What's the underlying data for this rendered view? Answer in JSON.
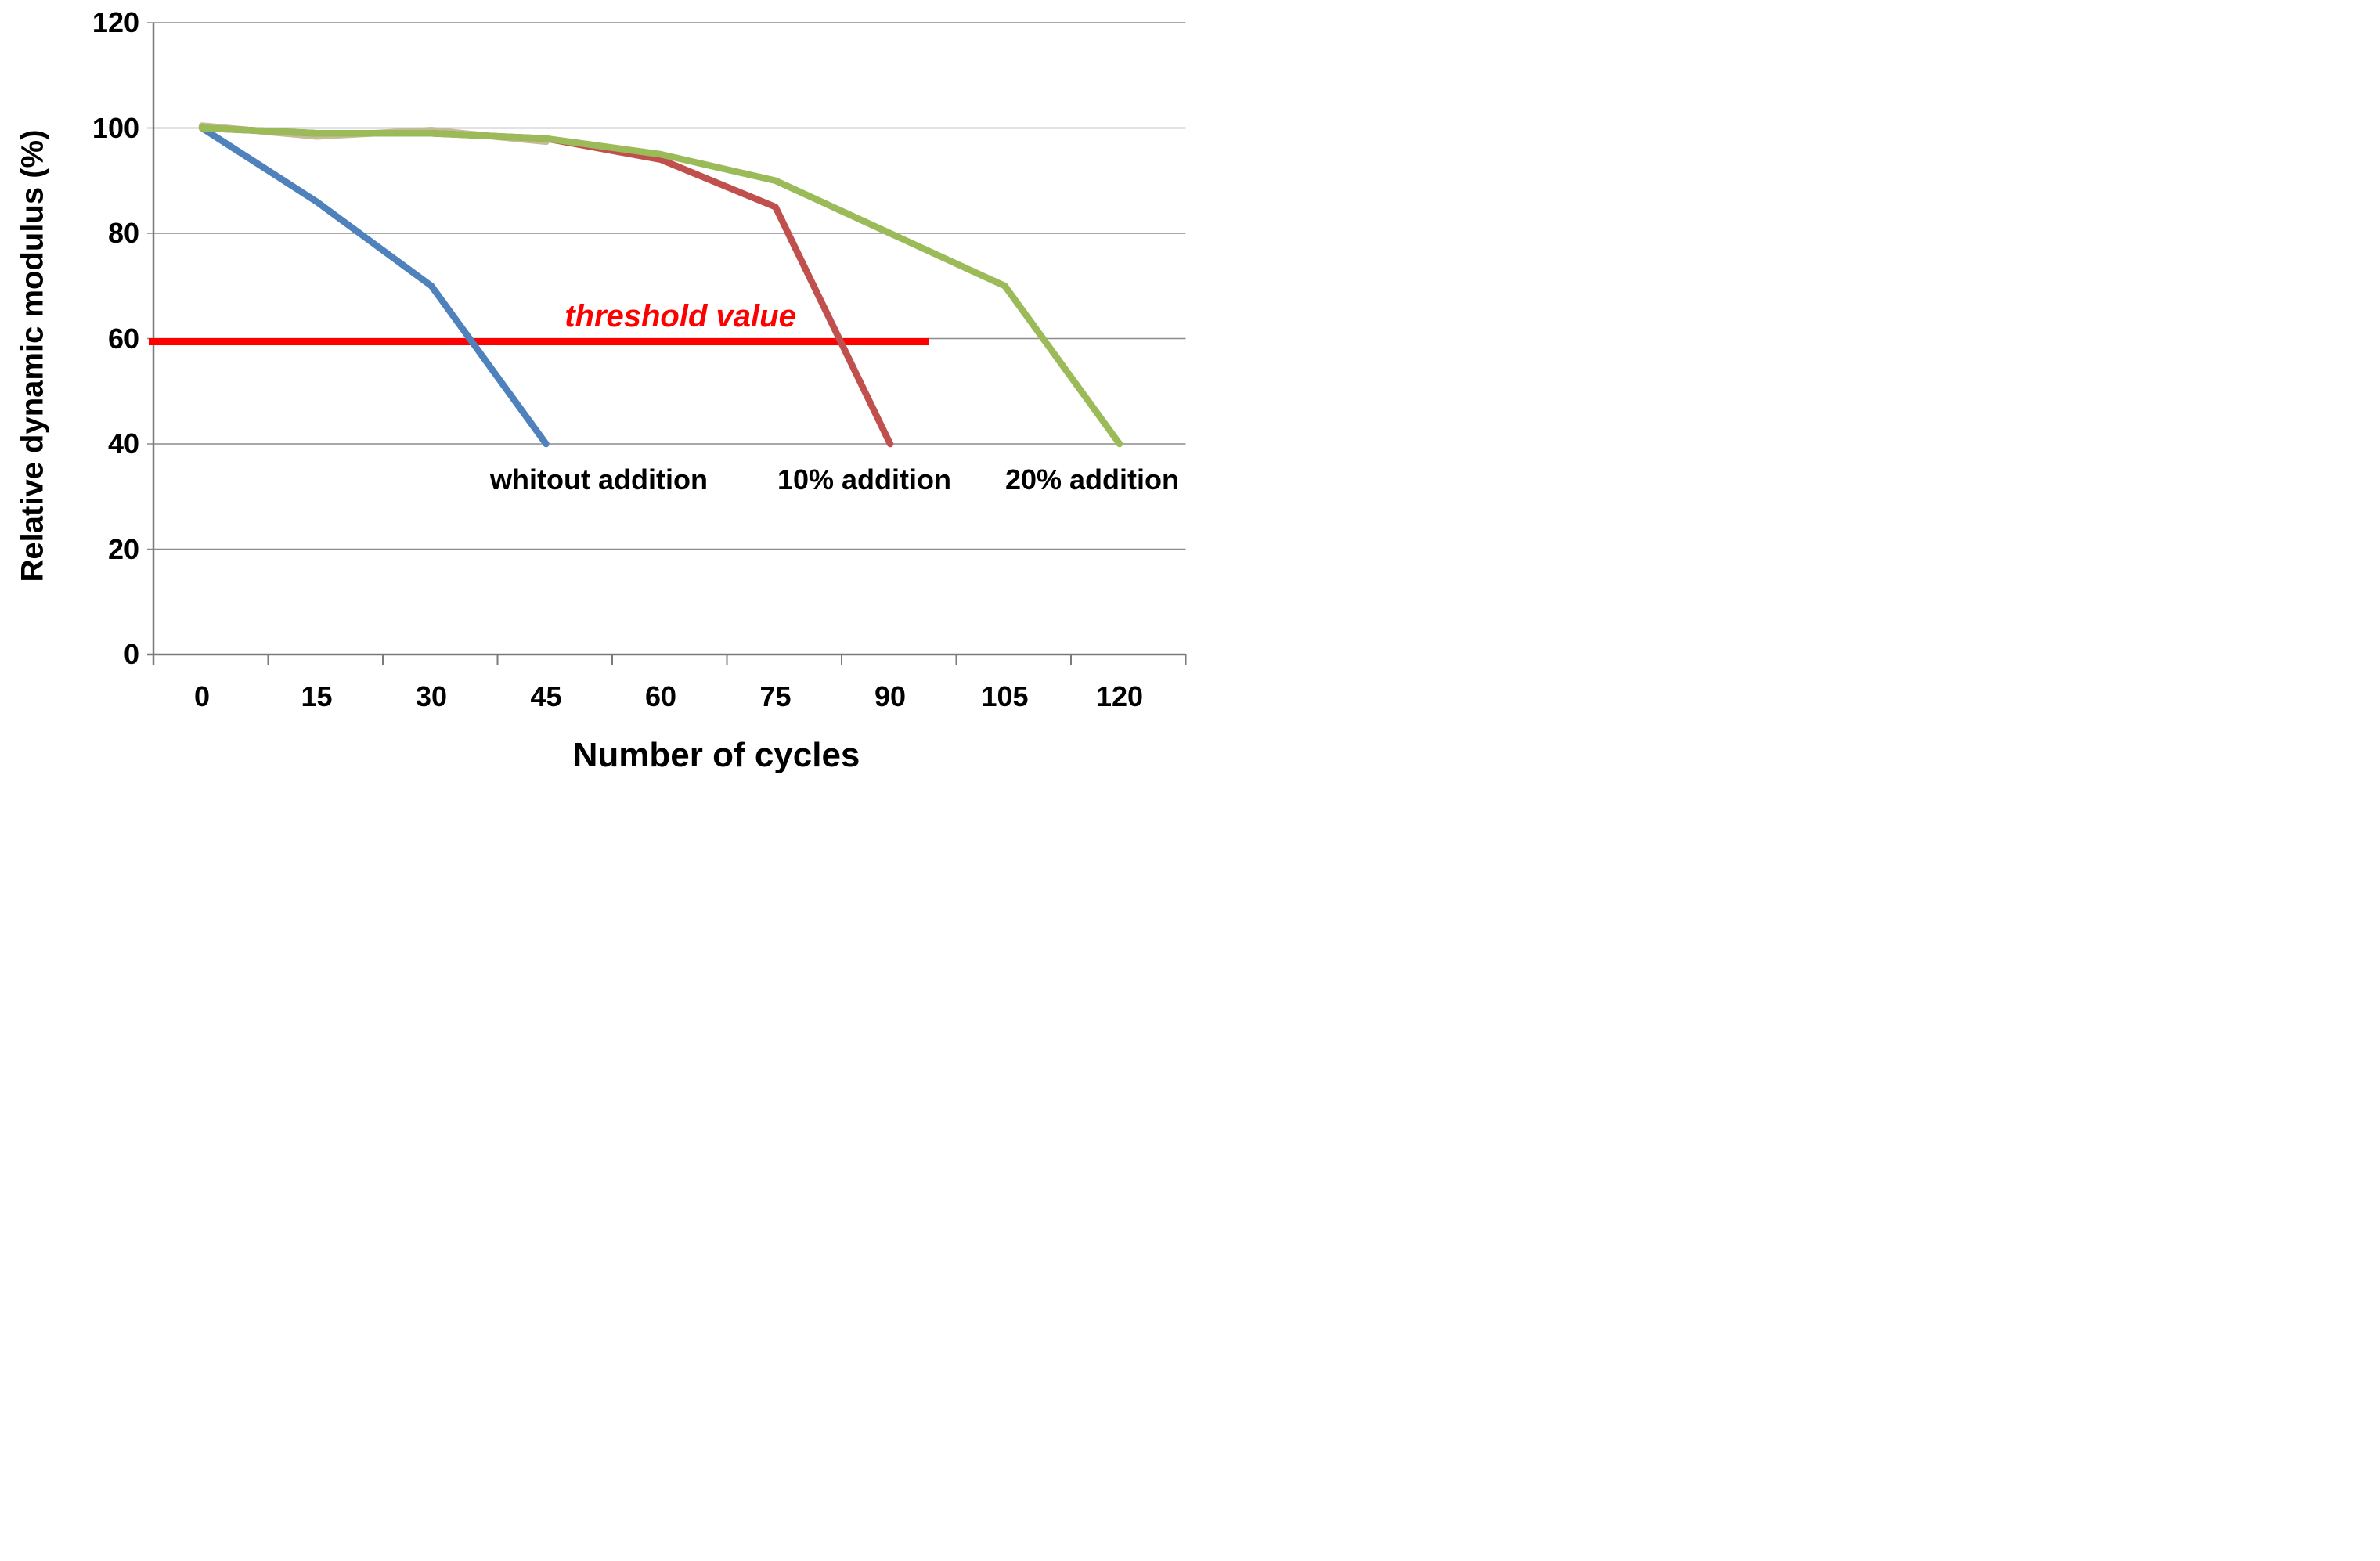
{
  "chart_data": {
    "type": "line",
    "title": "",
    "xlabel": "Number of cycles",
    "ylabel": "Relative dynamic modulus (%)",
    "x_ticks": [
      0,
      15,
      30,
      45,
      60,
      75,
      90,
      105,
      120
    ],
    "y_ticks": [
      0,
      20,
      40,
      60,
      80,
      100,
      120
    ],
    "xlim_categories": [
      0,
      120
    ],
    "ylim": [
      0,
      120
    ],
    "grid": "horizontal-only",
    "legend_position": "inline-text-labels-under-curves",
    "series": [
      {
        "name": "whitout addition",
        "color": "#4F81BD",
        "x": [
          0,
          15,
          30,
          45
        ],
        "values": [
          100,
          86,
          70,
          40
        ]
      },
      {
        "name": "10% addition",
        "color": "#C0504D",
        "x": [
          0,
          15,
          30,
          45,
          60,
          75,
          90
        ],
        "values": [
          100,
          99,
          99,
          98,
          94,
          85,
          40
        ]
      },
      {
        "name": "20% addition",
        "color": "#9BBB59",
        "x": [
          0,
          15,
          30,
          45,
          60,
          75,
          90,
          105,
          120
        ],
        "values": [
          100,
          99,
          99,
          98,
          95,
          90,
          80,
          70,
          40
        ]
      },
      {
        "name": "unlabeled tan line (mostly hidden behind 20% addition curve)",
        "color": "#C4BD97",
        "x": [
          0,
          15,
          30,
          45
        ],
        "values": [
          100,
          99,
          99,
          98
        ]
      }
    ],
    "threshold": {
      "label": "threshold value",
      "value": 60,
      "color": "#FF0000",
      "x_extent_cycles": [
        -7,
        93
      ]
    },
    "colors": {
      "gridline": "#8C8C8C",
      "axis": "#7A7A7A",
      "text": "#000000",
      "threshold_text": "#FF0000"
    }
  }
}
